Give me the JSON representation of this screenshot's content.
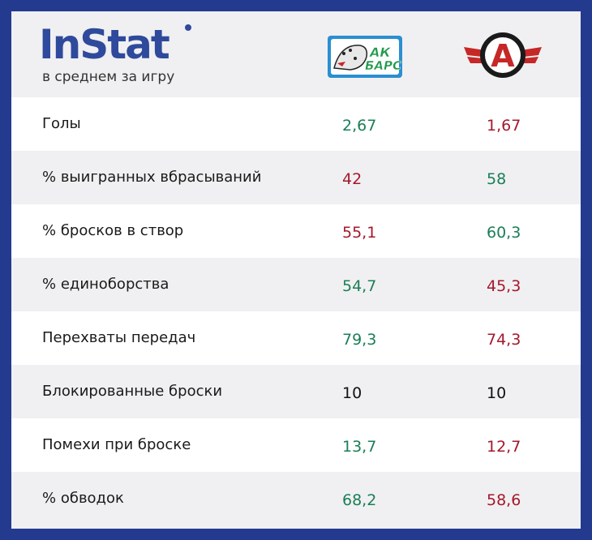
{
  "header": {
    "brand": "InStat",
    "subtitle": "в среднем за игру",
    "team1_logo_text": "АК БАРС",
    "team2_logo_text": "А"
  },
  "colors": {
    "frame": "#233a8f",
    "brand": "#2f4a9c",
    "better": "#1a7f55",
    "worse": "#a5182c",
    "equal": "#111111"
  },
  "rows": [
    {
      "label": "Голы",
      "team1": "2,67",
      "team2": "1,67",
      "team1_status": "green",
      "team2_status": "red"
    },
    {
      "label": "% выигранных вбрасываний",
      "team1": "42",
      "team2": "58",
      "team1_status": "red",
      "team2_status": "green"
    },
    {
      "label": "% бросков в створ",
      "team1": "55,1",
      "team2": "60,3",
      "team1_status": "red",
      "team2_status": "green"
    },
    {
      "label": "% единоборства",
      "team1": "54,7",
      "team2": "45,3",
      "team1_status": "green",
      "team2_status": "red"
    },
    {
      "label": "Перехваты передач",
      "team1": "79,3",
      "team2": "74,3",
      "team1_status": "green",
      "team2_status": "red"
    },
    {
      "label": "Блокированные броски",
      "team1": "10",
      "team2": "10",
      "team1_status": "black",
      "team2_status": "black"
    },
    {
      "label": "Помехи при броске",
      "team1": "13,7",
      "team2": "12,7",
      "team1_status": "green",
      "team2_status": "red"
    },
    {
      "label": "% обводок",
      "team1": "68,2",
      "team2": "58,6",
      "team1_status": "green",
      "team2_status": "red"
    }
  ]
}
